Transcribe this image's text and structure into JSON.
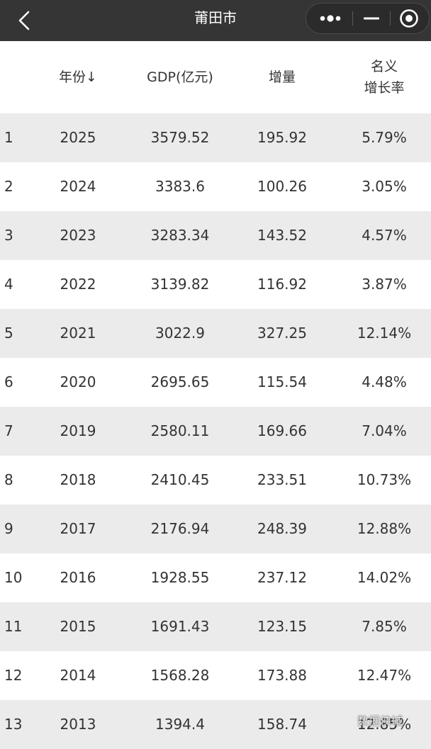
{
  "nav": {
    "title": "莆田市",
    "back_icon": "chevron-left-icon",
    "more_icon": "more-dots-icon",
    "minimize_icon": "minimize-icon",
    "close_icon": "target-close-icon"
  },
  "table": {
    "headers": {
      "index": "",
      "year": "年份↓",
      "gdp": "GDP(亿元)",
      "increase": "增量",
      "rate_line1": "名义",
      "rate_line2": "增长率"
    },
    "rows": [
      {
        "idx": "1",
        "year": "2025",
        "gdp": "3579.52",
        "inc": "195.92",
        "rate": "5.79%"
      },
      {
        "idx": "2",
        "year": "2024",
        "gdp": "3383.6",
        "inc": "100.26",
        "rate": "3.05%"
      },
      {
        "idx": "3",
        "year": "2023",
        "gdp": "3283.34",
        "inc": "143.52",
        "rate": "4.57%"
      },
      {
        "idx": "4",
        "year": "2022",
        "gdp": "3139.82",
        "inc": "116.92",
        "rate": "3.87%"
      },
      {
        "idx": "5",
        "year": "2021",
        "gdp": "3022.9",
        "inc": "327.25",
        "rate": "12.14%"
      },
      {
        "idx": "6",
        "year": "2020",
        "gdp": "2695.65",
        "inc": "115.54",
        "rate": "4.48%"
      },
      {
        "idx": "7",
        "year": "2019",
        "gdp": "2580.11",
        "inc": "169.66",
        "rate": "7.04%"
      },
      {
        "idx": "8",
        "year": "2018",
        "gdp": "2410.45",
        "inc": "233.51",
        "rate": "10.73%"
      },
      {
        "idx": "9",
        "year": "2017",
        "gdp": "2176.94",
        "inc": "248.39",
        "rate": "12.88%"
      },
      {
        "idx": "10",
        "year": "2016",
        "gdp": "1928.55",
        "inc": "237.12",
        "rate": "14.02%"
      },
      {
        "idx": "11",
        "year": "2015",
        "gdp": "1691.43",
        "inc": "123.15",
        "rate": "7.85%"
      },
      {
        "idx": "12",
        "year": "2014",
        "gdp": "1568.28",
        "inc": "173.88",
        "rate": "12.47%"
      },
      {
        "idx": "13",
        "year": "2013",
        "gdp": "1394.4",
        "inc": "158.74",
        "rate": "12.85%"
      }
    ]
  },
  "watermark": "数据侠城"
}
